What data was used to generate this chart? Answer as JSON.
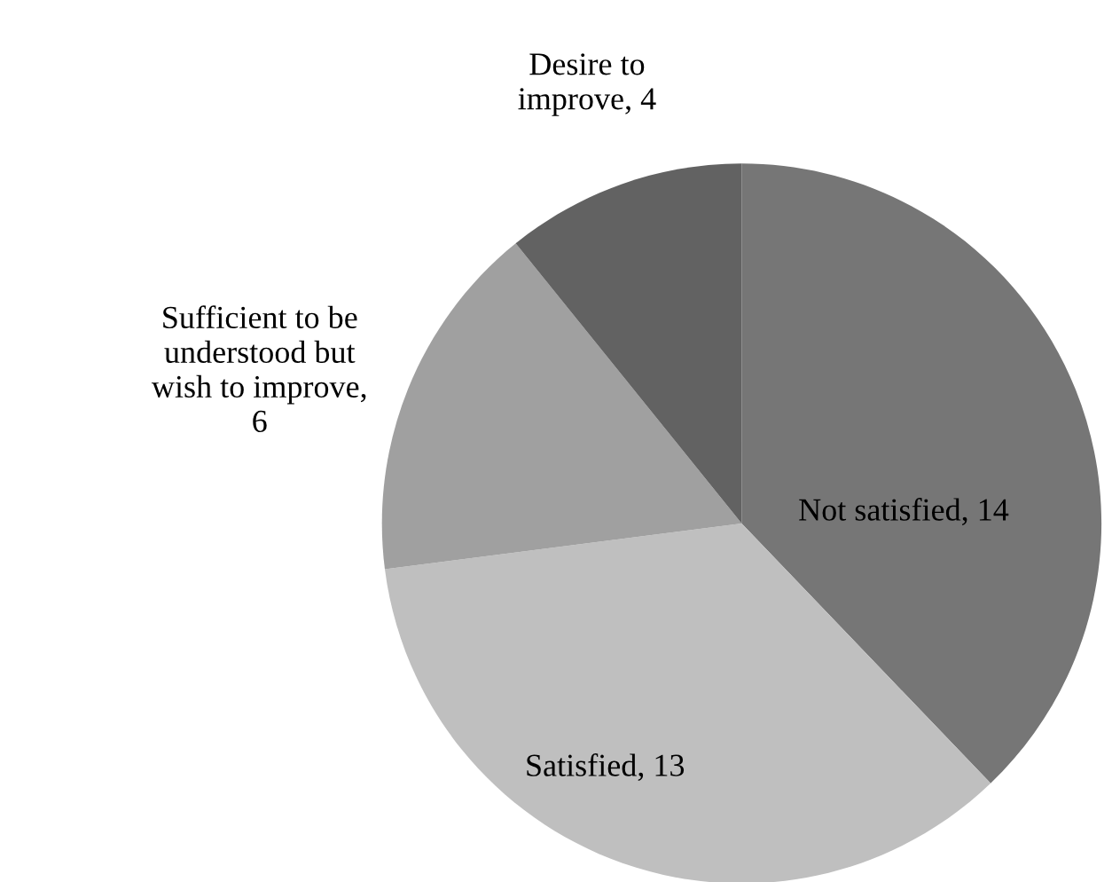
{
  "chart_data": {
    "type": "pie",
    "categories": [
      "Not satisfied, 14",
      "Satisfied, 13",
      "Sufficient to be\nunderstood but\nwish to improve,\n6",
      "Desire to\nimprove, 4"
    ],
    "values": [
      14,
      13,
      6,
      4
    ],
    "colors": [
      "#767676",
      "#bfbfbf",
      "#a0a0a0",
      "#626262"
    ],
    "legend": false
  }
}
